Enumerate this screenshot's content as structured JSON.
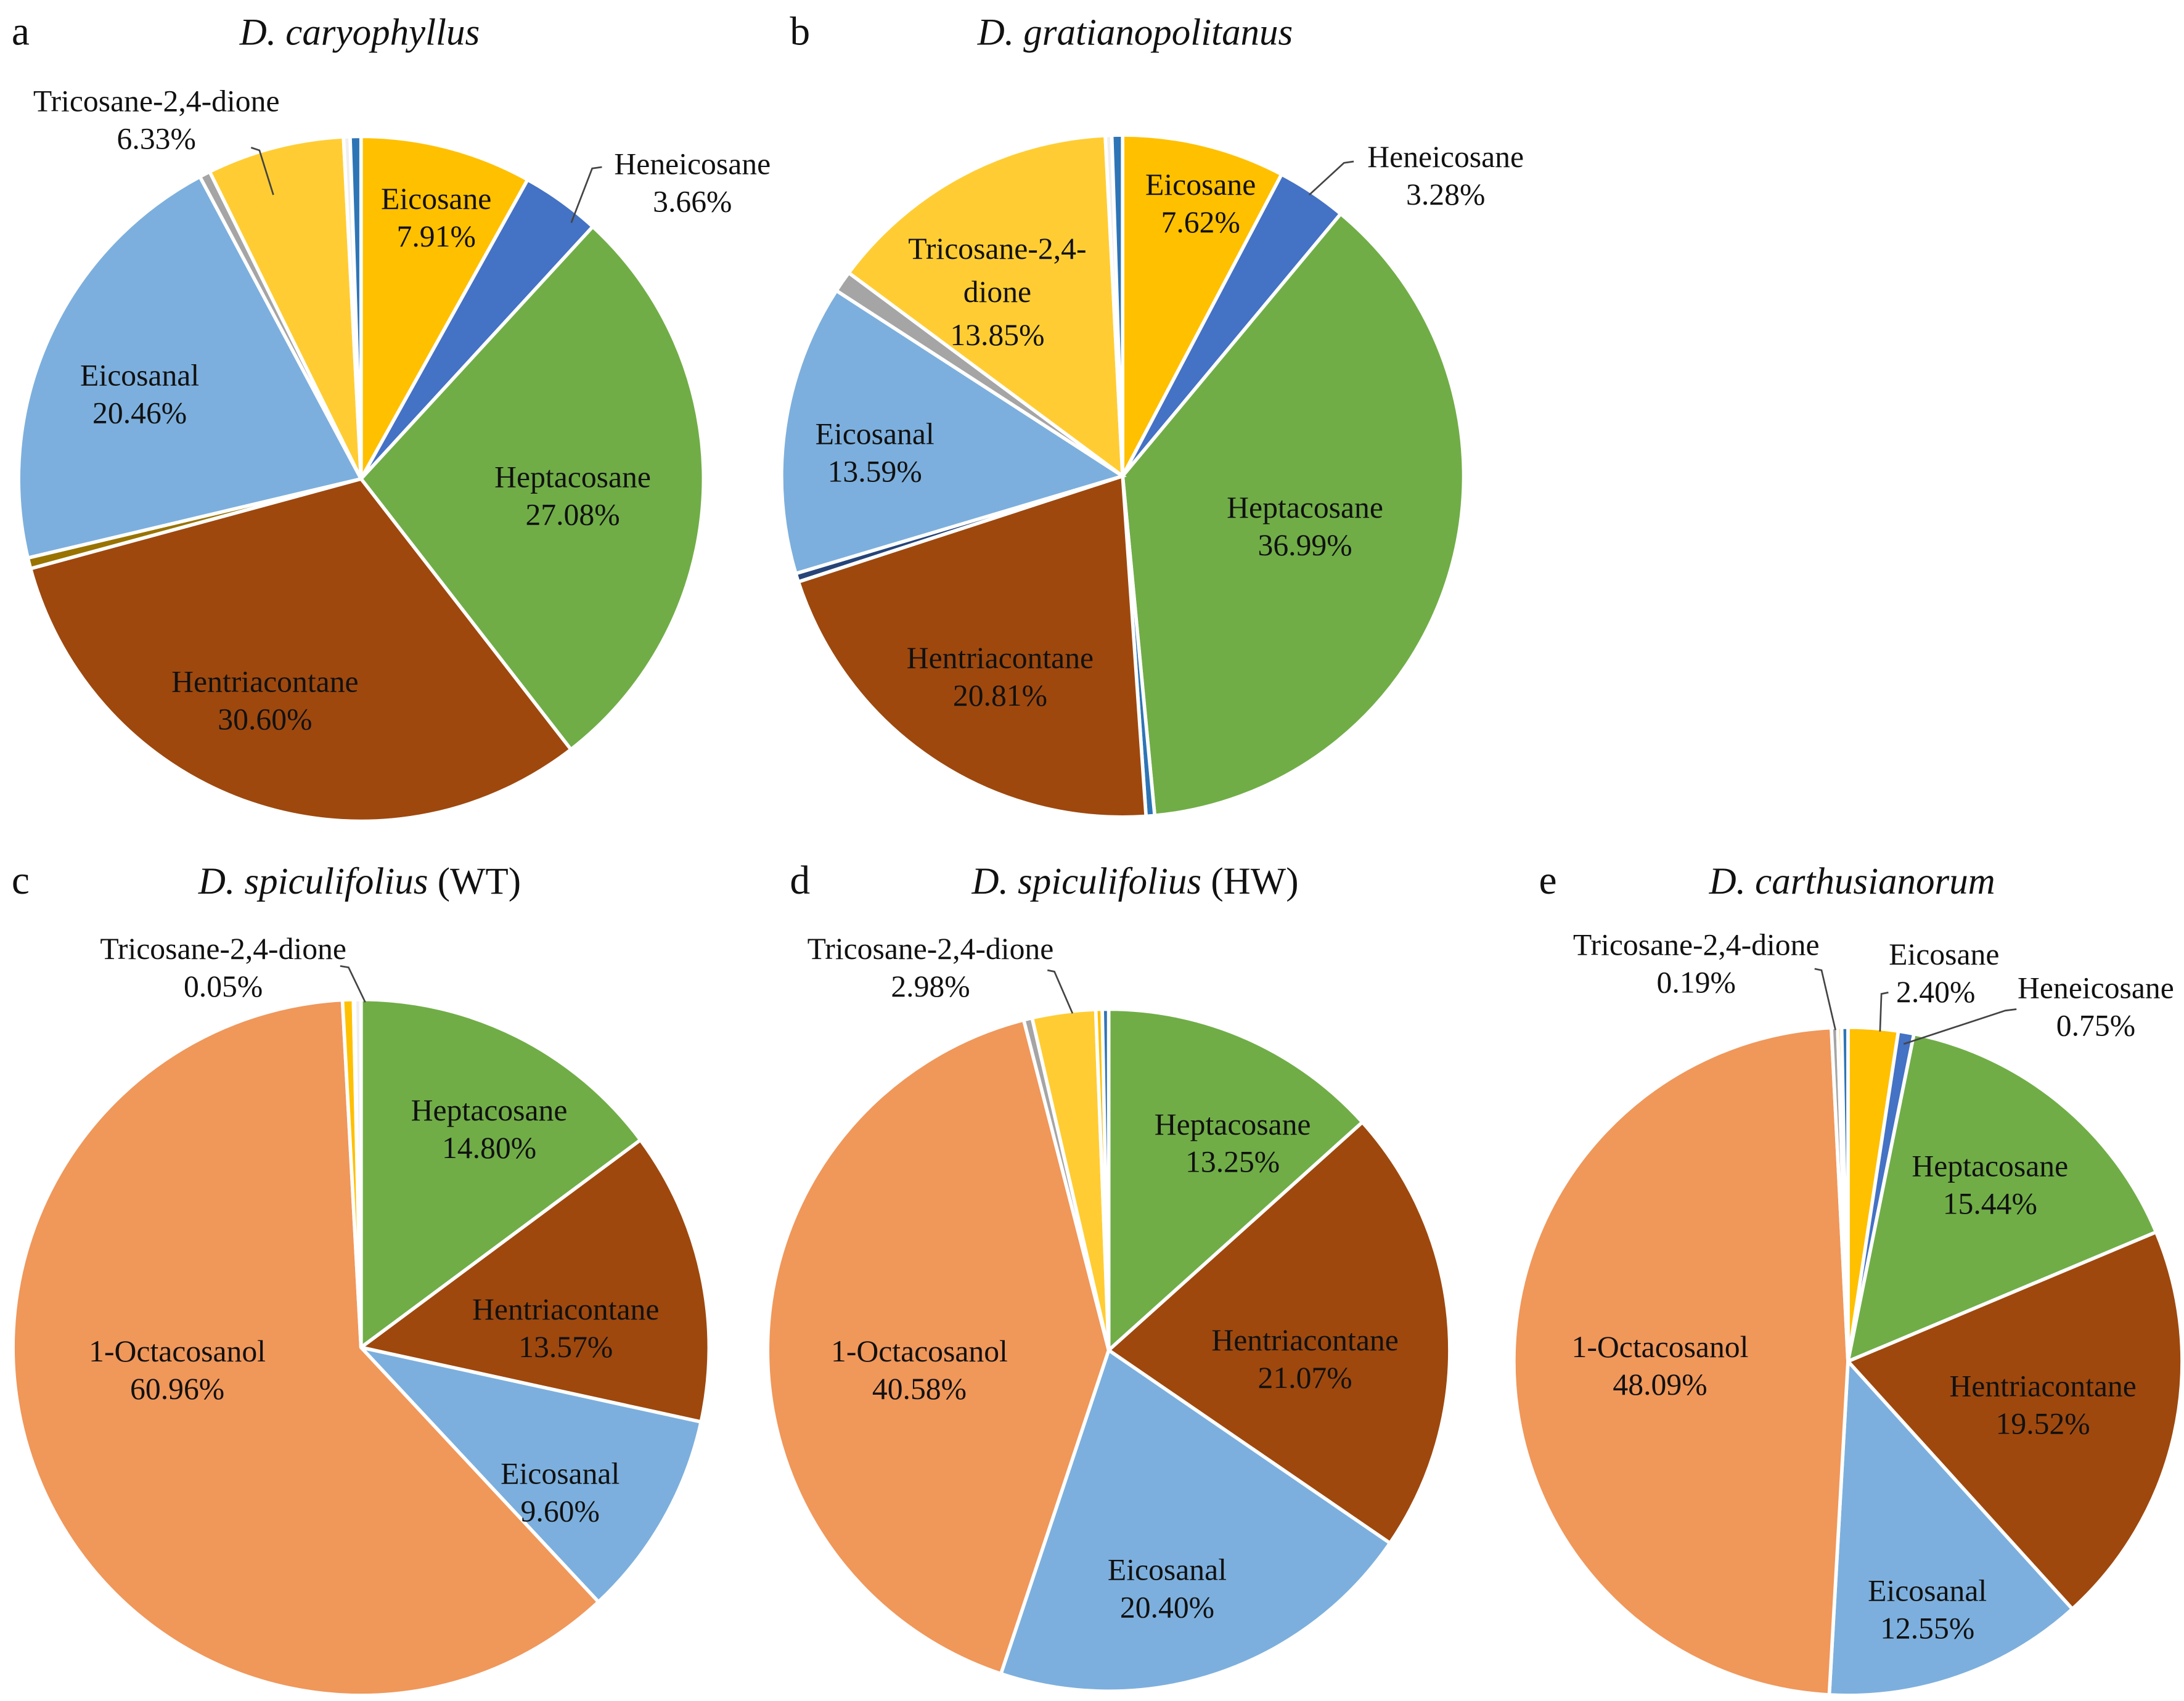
{
  "chart_data": [
    {
      "type": "pie",
      "panel": "a",
      "title": "D. caryophyllus",
      "title_suffix": "",
      "slices": [
        {
          "name": "Eicosane",
          "value": 7.91,
          "color": "#FFC000"
        },
        {
          "name": "Heneicosane",
          "value": 3.66,
          "color": "#4472C4"
        },
        {
          "name": "Heptacosane",
          "value": 27.08,
          "color": "#70AD47"
        },
        {
          "name": "Hentriacontane",
          "value": 30.6,
          "color": "#9E480E"
        },
        {
          "name": "",
          "value": 0.5,
          "color": "#997300"
        },
        {
          "name": "Eicosanal",
          "value": 20.46,
          "color": "#7CAFDD"
        },
        {
          "name": "",
          "value": 0.5,
          "color": "#A5A5A5"
        },
        {
          "name": "Tricosane-2,4-dione",
          "value": 6.33,
          "color": "#FFCD33"
        },
        {
          "name": "",
          "value": 0.3,
          "color": "#EFEFEF"
        },
        {
          "name": "",
          "value": 0.5,
          "color": "#2E75B6"
        }
      ]
    },
    {
      "type": "pie",
      "panel": "b",
      "title": "D. gratianopolitanus",
      "title_suffix": "",
      "slices": [
        {
          "name": "Eicosane",
          "value": 7.62,
          "color": "#FFC000"
        },
        {
          "name": "Heneicosane",
          "value": 3.28,
          "color": "#4472C4"
        },
        {
          "name": "Heptacosane",
          "value": 36.99,
          "color": "#70AD47"
        },
        {
          "name": "",
          "value": 0.4,
          "color": "#2E75B6"
        },
        {
          "name": "Hentriacontane",
          "value": 20.81,
          "color": "#9E480E"
        },
        {
          "name": "",
          "value": 0.4,
          "color": "#264478"
        },
        {
          "name": "Eicosanal",
          "value": 13.59,
          "color": "#7CAFDD"
        },
        {
          "name": "",
          "value": 1.0,
          "color": "#A5A5A5"
        },
        {
          "name": "Tricosane-2,4-dione",
          "value": 13.85,
          "color": "#FFCD33"
        },
        {
          "name": "",
          "value": 0.3,
          "color": "#EFEFEF"
        },
        {
          "name": "",
          "value": 0.5,
          "color": "#2E75B6"
        }
      ]
    },
    {
      "type": "pie",
      "panel": "c",
      "title": "D. spiculifolius",
      "title_suffix": " (WT)",
      "slices": [
        {
          "name": "Heptacosane",
          "value": 14.8,
          "color": "#70AD47"
        },
        {
          "name": "Hentriacontane",
          "value": 13.57,
          "color": "#9E480E"
        },
        {
          "name": "Eicosanal",
          "value": 9.6,
          "color": "#7CAFDD"
        },
        {
          "name": "1-Octacosanol",
          "value": 60.96,
          "color": "#F0975A"
        },
        {
          "name": "",
          "value": 0.5,
          "color": "#FFC000"
        },
        {
          "name": "Tricosane-2,4-dione",
          "value": 0.05,
          "color": "#FFCD33"
        },
        {
          "name": "",
          "value": 0.3,
          "color": "#EFEFEF"
        }
      ]
    },
    {
      "type": "pie",
      "panel": "d",
      "title": "D. spiculifolius",
      "title_suffix": " (HW)",
      "slices": [
        {
          "name": "Heptacosane",
          "value": 13.25,
          "color": "#70AD47"
        },
        {
          "name": "Hentriacontane",
          "value": 21.07,
          "color": "#9E480E"
        },
        {
          "name": "Eicosanal",
          "value": 20.4,
          "color": "#7CAFDD"
        },
        {
          "name": "1-Octacosanol",
          "value": 40.58,
          "color": "#F0975A"
        },
        {
          "name": "",
          "value": 0.4,
          "color": "#A5A5A5"
        },
        {
          "name": "Tricosane-2,4-dione",
          "value": 2.98,
          "color": "#FFCD33"
        },
        {
          "name": "",
          "value": 0.3,
          "color": "#FFC000"
        },
        {
          "name": "",
          "value": 0.3,
          "color": "#2E75B6"
        }
      ]
    },
    {
      "type": "pie",
      "panel": "e",
      "title": "D. carthusianorum",
      "title_suffix": "",
      "slices": [
        {
          "name": "Eicosane",
          "value": 2.4,
          "color": "#FFC000"
        },
        {
          "name": "Heneicosane",
          "value": 0.75,
          "color": "#4472C4"
        },
        {
          "name": "Heptacosane",
          "value": 15.44,
          "color": "#70AD47"
        },
        {
          "name": "Hentriacontane",
          "value": 19.52,
          "color": "#9E480E"
        },
        {
          "name": "Eicosanal",
          "value": 12.55,
          "color": "#7CAFDD"
        },
        {
          "name": "1-Octacosanol",
          "value": 48.09,
          "color": "#F0975A"
        },
        {
          "name": "",
          "value": 0.3,
          "color": "#A5A5A5"
        },
        {
          "name": "Tricosane-2,4-dione",
          "value": 0.19,
          "color": "#FFCD33"
        },
        {
          "name": "",
          "value": 0.3,
          "color": "#2E75B6"
        }
      ]
    }
  ]
}
